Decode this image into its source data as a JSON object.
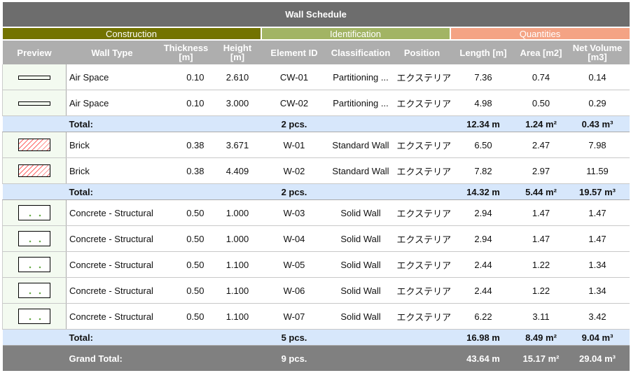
{
  "title": "Wall Schedule",
  "groups": [
    {
      "label": "Construction",
      "color": "#737300"
    },
    {
      "label": "Identification",
      "color": "#a2b464"
    },
    {
      "label": "Quantities",
      "color": "#f4a384"
    }
  ],
  "columns": [
    "Preview",
    "Wall Type",
    "Thickness\n[m]",
    "Height\n[m]",
    "Element ID",
    "Classification",
    "Position",
    "Length [m]",
    "Area [m2]",
    "Net Volume\n[m3]"
  ],
  "sections": [
    {
      "preview": "air-space",
      "rows": [
        [
          "Air Space",
          "0.10",
          "2.610",
          "CW-01",
          "Partitioning ...",
          "エクステリア",
          "7.36",
          "0.74",
          "0.14"
        ],
        [
          "Air Space",
          "0.10",
          "3.000",
          "CW-02",
          "Partitioning ...",
          "エクステリア",
          "4.98",
          "0.50",
          "0.29"
        ]
      ],
      "total": {
        "label": "Total:",
        "count": "2 pcs.",
        "length": "12.34 m",
        "area": "1.24 m²",
        "volume": "0.43 m³"
      }
    },
    {
      "preview": "brick",
      "rows": [
        [
          "Brick",
          "0.38",
          "3.671",
          "W-01",
          "Standard Wall",
          "エクステリア",
          "6.50",
          "2.47",
          "7.98"
        ],
        [
          "Brick",
          "0.38",
          "4.409",
          "W-02",
          "Standard Wall",
          "エクステリア",
          "7.82",
          "2.97",
          "11.59"
        ]
      ],
      "total": {
        "label": "Total:",
        "count": "2 pcs.",
        "length": "14.32 m",
        "area": "5.44 m²",
        "volume": "19.57 m³"
      }
    },
    {
      "preview": "concrete",
      "rows": [
        [
          "Concrete - Structural",
          "0.50",
          "1.000",
          "W-03",
          "Solid Wall",
          "エクステリア",
          "2.94",
          "1.47",
          "1.47"
        ],
        [
          "Concrete - Structural",
          "0.50",
          "1.000",
          "W-04",
          "Solid Wall",
          "エクステリア",
          "2.94",
          "1.47",
          "1.47"
        ],
        [
          "Concrete - Structural",
          "0.50",
          "1.100",
          "W-05",
          "Solid Wall",
          "エクステリア",
          "2.44",
          "1.22",
          "1.34"
        ],
        [
          "Concrete - Structural",
          "0.50",
          "1.100",
          "W-06",
          "Solid Wall",
          "エクステリア",
          "2.44",
          "1.22",
          "1.34"
        ],
        [
          "Concrete - Structural",
          "0.50",
          "1.100",
          "W-07",
          "Solid Wall",
          "エクステリア",
          "6.22",
          "3.11",
          "3.42"
        ]
      ],
      "total": {
        "label": "Total:",
        "count": "5 pcs.",
        "length": "16.98 m",
        "area": "8.49 m²",
        "volume": "9.04 m³"
      }
    }
  ],
  "grand_total": {
    "label": "Grand Total:",
    "count": "9 pcs.",
    "length": "43.64 m",
    "area": "15.17 m²",
    "volume": "29.04 m³"
  }
}
